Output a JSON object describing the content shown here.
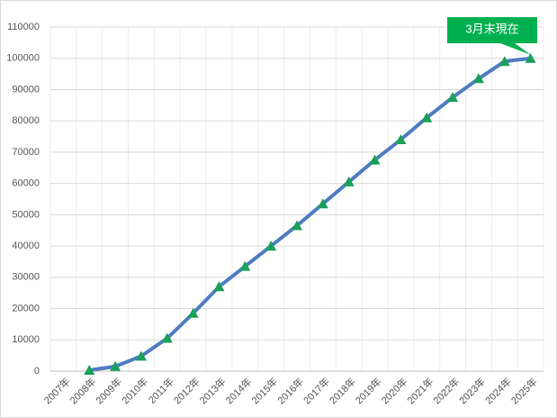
{
  "chart_data": {
    "type": "line",
    "categories": [
      "2007年",
      "2008年",
      "2009年",
      "2010年",
      "2011年",
      "2012年",
      "2013年",
      "2014年",
      "2015年",
      "2016年",
      "2017年",
      "2018年",
      "2019年",
      "2020年",
      "2021年",
      "2022年",
      "2023年",
      "2024年",
      "2025年"
    ],
    "series": [
      {
        "name": null,
        "color": "#4f7cc0",
        "marker_color": "#1aa05a",
        "values": [
          null,
          300,
          1500,
          4800,
          10500,
          18500,
          27000,
          33500,
          40000,
          46500,
          53500,
          60500,
          67500,
          74000,
          81000,
          87500,
          93500,
          99000,
          100000
        ]
      }
    ],
    "ylim": [
      0,
      110000
    ],
    "yticks": [
      0,
      10000,
      20000,
      30000,
      40000,
      50000,
      60000,
      70000,
      80000,
      90000,
      100000,
      110000
    ],
    "grid": true,
    "annotation": "3月末現在",
    "annotation_color": "#00b050"
  }
}
